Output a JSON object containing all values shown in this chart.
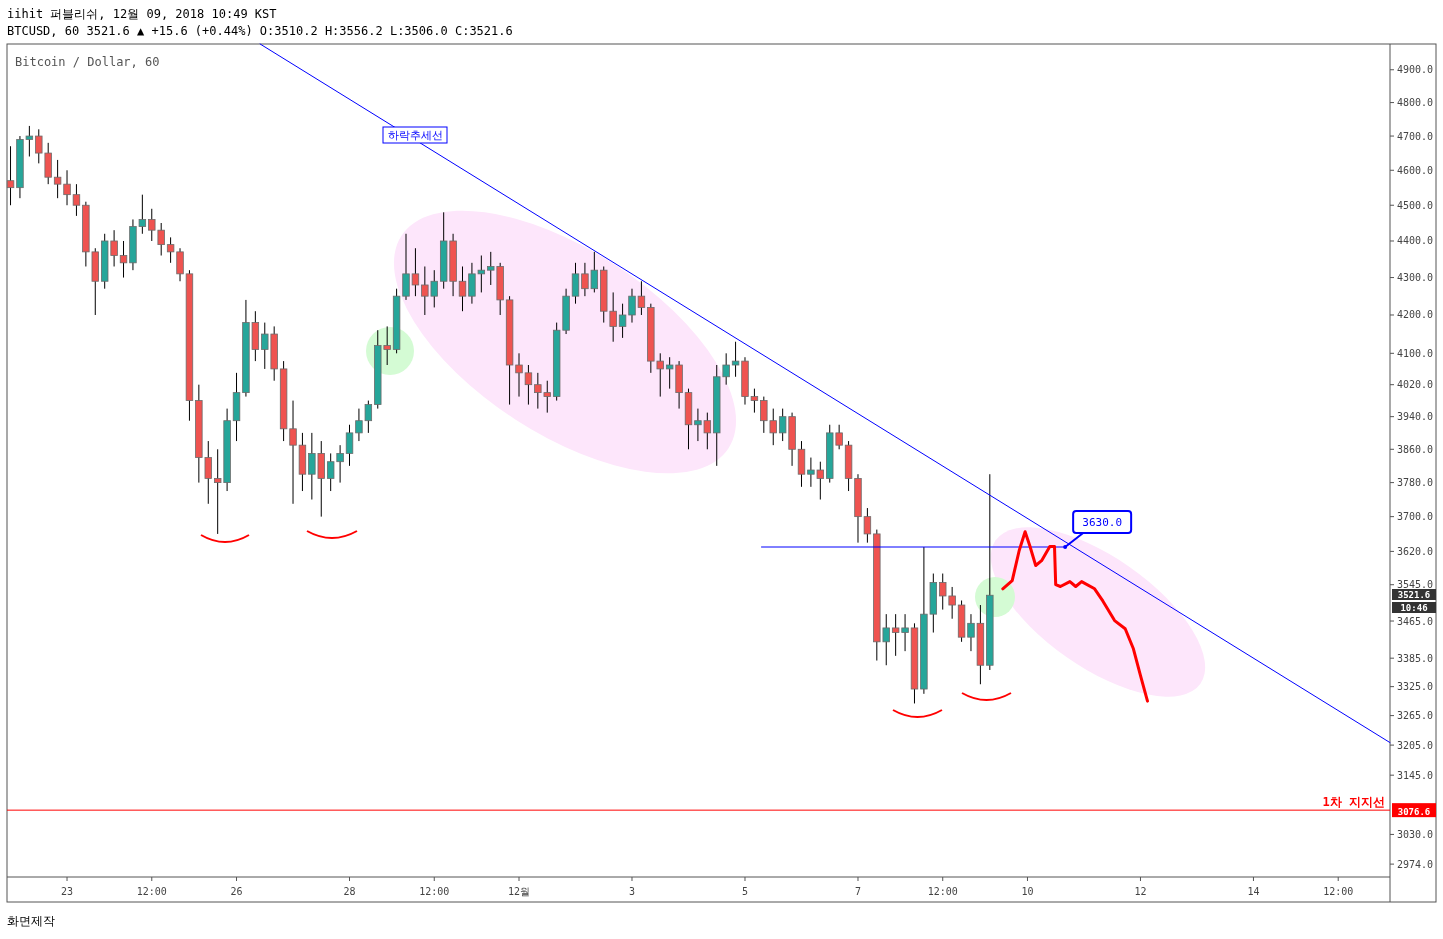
{
  "chart_data": {
    "type": "candlestick",
    "title": "Bitcoin / Dollar, 60",
    "log": true,
    "xlim": [
      "2018-11-21T22:30",
      "2018-12-16T10:00"
    ],
    "ylim": [
      2950,
      4980
    ],
    "xticks": [
      {
        "value": "2018-11-23",
        "label": "23"
      },
      {
        "value": "2018-11-24T12:00",
        "label": "12:00"
      },
      {
        "value": "2018-11-26",
        "label": "26"
      },
      {
        "value": "2018-11-28",
        "label": "28"
      },
      {
        "value": "2018-11-29T12:00",
        "label": "12:00"
      },
      {
        "value": "2018-12-01",
        "label": "12월"
      },
      {
        "value": "2018-12-03",
        "label": "3"
      },
      {
        "value": "2018-12-05",
        "label": "5"
      },
      {
        "value": "2018-12-07",
        "label": "7"
      },
      {
        "value": "2018-12-08T12:00",
        "label": "12:00"
      },
      {
        "value": "2018-12-10",
        "label": "10"
      },
      {
        "value": "2018-12-12",
        "label": "12"
      },
      {
        "value": "2018-12-14",
        "label": "14"
      },
      {
        "value": "2018-12-15T12:00",
        "label": "12:00"
      }
    ],
    "yticks": [
      {
        "value": 4900,
        "label": "4900.0"
      },
      {
        "value": 4800,
        "label": "4800.0"
      },
      {
        "value": 4700,
        "label": "4700.0"
      },
      {
        "value": 4600,
        "label": "4600.0"
      },
      {
        "value": 4500,
        "label": "4500.0"
      },
      {
        "value": 4400,
        "label": "4400.0"
      },
      {
        "value": 4300,
        "label": "4300.0"
      },
      {
        "value": 4200,
        "label": "4200.0"
      },
      {
        "value": 4100,
        "label": "4100.0"
      },
      {
        "value": 4020,
        "label": "4020.0"
      },
      {
        "value": 3940,
        "label": "3940.0"
      },
      {
        "value": 3860,
        "label": "3860.0"
      },
      {
        "value": 3780,
        "label": "3780.0"
      },
      {
        "value": 3700,
        "label": "3700.0"
      },
      {
        "value": 3620,
        "label": "3620.0"
      },
      {
        "value": 3545,
        "label": "3545.0"
      },
      {
        "value": 3465,
        "label": "3465.0"
      },
      {
        "value": 3385,
        "label": "3385.0"
      },
      {
        "value": 3325,
        "label": "3325.0"
      },
      {
        "value": 3265,
        "label": "3265.0"
      },
      {
        "value": 3205,
        "label": "3205.0"
      },
      {
        "value": 3145,
        "label": "3145.0"
      },
      {
        "value": 3030,
        "label": "3030.0"
      },
      {
        "value": 2974,
        "label": "2974.0"
      }
    ],
    "series": [
      {
        "type": "candlestick",
        "x": [
          "2018-11-22T00:00",
          "2018-11-22T04:00",
          "2018-11-22T08:00",
          "2018-11-22T12:00",
          "2018-11-22T16:00",
          "2018-11-22T20:00",
          "2018-11-23T00:00",
          "2018-11-23T04:00",
          "2018-11-23T08:00",
          "2018-11-23T12:00",
          "2018-11-23T16:00",
          "2018-11-23T20:00",
          "2018-11-24T00:00",
          "2018-11-24T04:00",
          "2018-11-24T08:00",
          "2018-11-24T12:00",
          "2018-11-24T16:00",
          "2018-11-24T20:00",
          "2018-11-25T00:00",
          "2018-11-25T04:00",
          "2018-11-25T08:00",
          "2018-11-25T12:00",
          "2018-11-25T16:00",
          "2018-11-25T20:00",
          "2018-11-26T00:00",
          "2018-11-26T04:00",
          "2018-11-26T08:00",
          "2018-11-26T12:00",
          "2018-11-26T16:00",
          "2018-11-26T20:00",
          "2018-11-27T00:00",
          "2018-11-27T04:00",
          "2018-11-27T08:00",
          "2018-11-27T12:00",
          "2018-11-27T16:00",
          "2018-11-27T20:00",
          "2018-11-28T00:00",
          "2018-11-28T04:00",
          "2018-11-28T08:00",
          "2018-11-28T12:00",
          "2018-11-28T16:00",
          "2018-11-28T20:00",
          "2018-11-29T00:00",
          "2018-11-29T04:00",
          "2018-11-29T08:00",
          "2018-11-29T12:00",
          "2018-11-29T16:00",
          "2018-11-29T20:00",
          "2018-11-30T00:00",
          "2018-11-30T04:00",
          "2018-11-30T08:00",
          "2018-11-30T12:00",
          "2018-11-30T16:00",
          "2018-11-30T20:00",
          "2018-12-01T00:00",
          "2018-12-01T04:00",
          "2018-12-01T08:00",
          "2018-12-01T12:00",
          "2018-12-01T16:00",
          "2018-12-01T20:00",
          "2018-12-02T00:00",
          "2018-12-02T04:00",
          "2018-12-02T08:00",
          "2018-12-02T12:00",
          "2018-12-02T16:00",
          "2018-12-02T20:00",
          "2018-12-03T00:00",
          "2018-12-03T04:00",
          "2018-12-03T08:00",
          "2018-12-03T12:00",
          "2018-12-03T16:00",
          "2018-12-03T20:00",
          "2018-12-04T00:00",
          "2018-12-04T04:00",
          "2018-12-04T08:00",
          "2018-12-04T12:00",
          "2018-12-04T16:00",
          "2018-12-04T20:00",
          "2018-12-05T00:00",
          "2018-12-05T04:00",
          "2018-12-05T08:00",
          "2018-12-05T12:00",
          "2018-12-05T16:00",
          "2018-12-05T20:00",
          "2018-12-06T00:00",
          "2018-12-06T04:00",
          "2018-12-06T08:00",
          "2018-12-06T12:00",
          "2018-12-06T16:00",
          "2018-12-06T20:00",
          "2018-12-07T00:00",
          "2018-12-07T04:00",
          "2018-12-07T08:00",
          "2018-12-07T12:00",
          "2018-12-07T16:00",
          "2018-12-07T20:00",
          "2018-12-08T00:00",
          "2018-12-08T04:00",
          "2018-12-08T08:00",
          "2018-12-08T12:00",
          "2018-12-08T16:00",
          "2018-12-08T20:00",
          "2018-12-09T00:00",
          "2018-12-09T04:00",
          "2018-12-09T08:00"
        ],
        "ohlc": [
          [
            4570,
            4670,
            4500,
            4550
          ],
          [
            4550,
            4700,
            4520,
            4690
          ],
          [
            4690,
            4730,
            4640,
            4700
          ],
          [
            4700,
            4720,
            4620,
            4650
          ],
          [
            4650,
            4680,
            4560,
            4580
          ],
          [
            4580,
            4630,
            4520,
            4560
          ],
          [
            4560,
            4600,
            4500,
            4530
          ],
          [
            4530,
            4560,
            4470,
            4500
          ],
          [
            4500,
            4510,
            4330,
            4370
          ],
          [
            4370,
            4380,
            4200,
            4290
          ],
          [
            4290,
            4420,
            4270,
            4400
          ],
          [
            4400,
            4430,
            4330,
            4360
          ],
          [
            4360,
            4400,
            4300,
            4340
          ],
          [
            4340,
            4460,
            4320,
            4440
          ],
          [
            4440,
            4530,
            4420,
            4460
          ],
          [
            4460,
            4490,
            4400,
            4430
          ],
          [
            4430,
            4450,
            4360,
            4390
          ],
          [
            4390,
            4410,
            4340,
            4370
          ],
          [
            4370,
            4380,
            4290,
            4310
          ],
          [
            4310,
            4320,
            3930,
            3980
          ],
          [
            3980,
            4020,
            3780,
            3840
          ],
          [
            3840,
            3880,
            3730,
            3790
          ],
          [
            3790,
            3860,
            3660,
            3780
          ],
          [
            3780,
            3960,
            3760,
            3930
          ],
          [
            3930,
            4050,
            3880,
            4000
          ],
          [
            4000,
            4240,
            3990,
            4180
          ],
          [
            4180,
            4210,
            4080,
            4110
          ],
          [
            4110,
            4180,
            4060,
            4150
          ],
          [
            4150,
            4170,
            4030,
            4060
          ],
          [
            4060,
            4080,
            3880,
            3910
          ],
          [
            3910,
            3980,
            3730,
            3870
          ],
          [
            3870,
            3900,
            3760,
            3800
          ],
          [
            3800,
            3900,
            3740,
            3850
          ],
          [
            3850,
            3880,
            3700,
            3790
          ],
          [
            3790,
            3850,
            3760,
            3830
          ],
          [
            3830,
            3870,
            3780,
            3850
          ],
          [
            3850,
            3920,
            3820,
            3900
          ],
          [
            3900,
            3960,
            3880,
            3930
          ],
          [
            3930,
            3980,
            3900,
            3970
          ],
          [
            3970,
            4160,
            3960,
            4120
          ],
          [
            4120,
            4170,
            4070,
            4110
          ],
          [
            4110,
            4270,
            4100,
            4250
          ],
          [
            4250,
            4420,
            4240,
            4310
          ],
          [
            4310,
            4380,
            4250,
            4280
          ],
          [
            4280,
            4330,
            4200,
            4250
          ],
          [
            4250,
            4320,
            4220,
            4290
          ],
          [
            4290,
            4480,
            4270,
            4400
          ],
          [
            4400,
            4420,
            4250,
            4290
          ],
          [
            4290,
            4330,
            4210,
            4250
          ],
          [
            4250,
            4340,
            4230,
            4310
          ],
          [
            4310,
            4360,
            4260,
            4320
          ],
          [
            4320,
            4370,
            4280,
            4330
          ],
          [
            4330,
            4340,
            4200,
            4240
          ],
          [
            4240,
            4250,
            3970,
            4070
          ],
          [
            4070,
            4100,
            3990,
            4050
          ],
          [
            4050,
            4070,
            3970,
            4020
          ],
          [
            4020,
            4050,
            3960,
            4000
          ],
          [
            4000,
            4030,
            3950,
            3990
          ],
          [
            3990,
            4180,
            3980,
            4160
          ],
          [
            4160,
            4270,
            4150,
            4250
          ],
          [
            4250,
            4340,
            4230,
            4310
          ],
          [
            4310,
            4340,
            4250,
            4270
          ],
          [
            4270,
            4370,
            4260,
            4320
          ],
          [
            4320,
            4330,
            4180,
            4210
          ],
          [
            4210,
            4260,
            4130,
            4170
          ],
          [
            4170,
            4230,
            4140,
            4200
          ],
          [
            4200,
            4270,
            4180,
            4250
          ],
          [
            4250,
            4290,
            4200,
            4220
          ],
          [
            4220,
            4230,
            4050,
            4080
          ],
          [
            4080,
            4100,
            3990,
            4060
          ],
          [
            4060,
            4090,
            4010,
            4070
          ],
          [
            4070,
            4080,
            3960,
            4000
          ],
          [
            4000,
            4010,
            3860,
            3920
          ],
          [
            3920,
            3960,
            3880,
            3930
          ],
          [
            3930,
            3950,
            3860,
            3900
          ],
          [
            3900,
            4070,
            3820,
            4040
          ],
          [
            4040,
            4100,
            4020,
            4070
          ],
          [
            4070,
            4130,
            4040,
            4080
          ],
          [
            4080,
            4090,
            3970,
            3990
          ],
          [
            3990,
            4010,
            3950,
            3980
          ],
          [
            3980,
            3990,
            3900,
            3930
          ],
          [
            3930,
            3960,
            3870,
            3900
          ],
          [
            3900,
            3960,
            3880,
            3940
          ],
          [
            3940,
            3950,
            3820,
            3860
          ],
          [
            3860,
            3880,
            3770,
            3800
          ],
          [
            3800,
            3840,
            3770,
            3810
          ],
          [
            3810,
            3830,
            3740,
            3790
          ],
          [
            3790,
            3920,
            3780,
            3900
          ],
          [
            3900,
            3920,
            3860,
            3870
          ],
          [
            3870,
            3880,
            3760,
            3790
          ],
          [
            3790,
            3800,
            3640,
            3700
          ],
          [
            3700,
            3720,
            3640,
            3660
          ],
          [
            3660,
            3670,
            3380,
            3420
          ],
          [
            3420,
            3480,
            3370,
            3450
          ],
          [
            3450,
            3480,
            3390,
            3440
          ],
          [
            3440,
            3480,
            3400,
            3450
          ],
          [
            3450,
            3460,
            3290,
            3320
          ],
          [
            3320,
            3630,
            3310,
            3480
          ],
          [
            3480,
            3570,
            3440,
            3550
          ],
          [
            3550,
            3570,
            3490,
            3520
          ],
          [
            3520,
            3540,
            3470,
            3500
          ],
          [
            3500,
            3510,
            3420,
            3430
          ],
          [
            3430,
            3480,
            3400,
            3460
          ],
          [
            3460,
            3500,
            3330,
            3370
          ],
          [
            3370,
            3800,
            3360,
            3521.6
          ]
        ]
      },
      {
        "type": "line",
        "color": "#0000ff",
        "x": [
          "2018-11-26T10:00",
          "2018-12-16T10:00"
        ],
        "values": [
          4980,
          3210
        ]
      },
      {
        "type": "line",
        "color": "#0000ff",
        "x": [
          "2018-12-05T07:00",
          "2018-12-10T16:00"
        ],
        "values": [
          3630,
          3630
        ]
      },
      {
        "type": "line",
        "color": "#ff0000",
        "x": [
          "2018-12-09T13:30",
          "2018-12-09T17:30",
          "2018-12-09T20:30",
          "2018-12-09T23:00",
          "2018-12-10T01:00",
          "2018-12-10T03:30",
          "2018-12-10T06:00",
          "2018-12-10T09:30",
          "2018-12-10T11:30",
          "2018-12-10T12:00",
          "2018-12-10T14:00",
          "2018-12-10T18:00",
          "2018-12-10T20:30",
          "2018-12-10T23:00",
          "2018-12-11T04:30",
          "2018-12-11T08:00",
          "2018-12-11T13:00",
          "2018-12-11T17:30",
          "2018-12-11T21:00",
          "2018-12-12T00:00",
          "2018-12-12T03:00"
        ],
        "values": [
          3536,
          3554,
          3622,
          3665,
          3633,
          3588,
          3599,
          3631,
          3631,
          3545,
          3541,
          3552,
          3541,
          3552,
          3536,
          3509,
          3466,
          3448,
          3405,
          3348,
          3295
        ]
      }
    ],
    "ref_lines": [
      {
        "axis": "y",
        "value": 3076.6,
        "label": "1차 지지선",
        "color": "#ff0000"
      }
    ],
    "annotations": [
      "iihit 퍼블리쉬, 12월 09, 2018 10:49 KST",
      "BTCUSD, 60 3521.6 ▲ +15.6 (+0.44%) O:3510.2 H:3556.2 L:3506.0 C:3521.6",
      "화면제작",
      "하락추세선",
      "3521.6",
      "10:46",
      "3076.6",
      {
        "text": "3630.0",
        "x": "2018-12-10T16:00",
        "y": 3630
      }
    ]
  }
}
